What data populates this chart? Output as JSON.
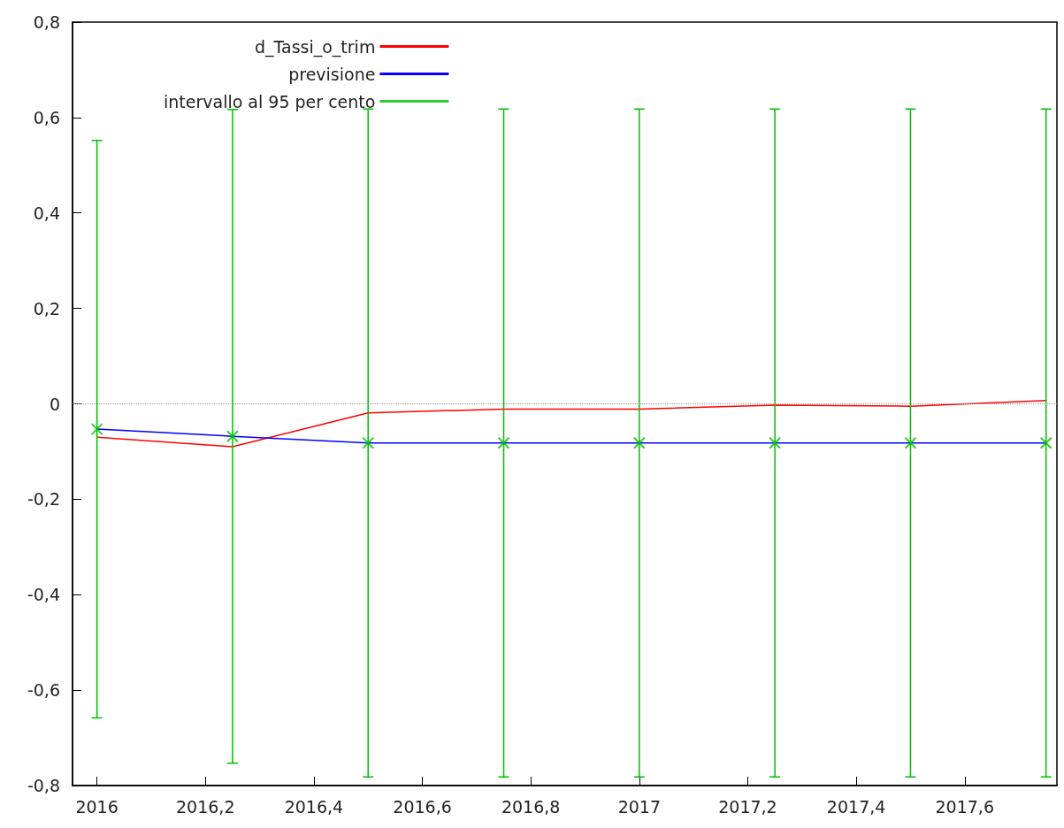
{
  "chart_data": {
    "type": "line",
    "x": [
      2016,
      2016.25,
      2016.5,
      2016.75,
      2017,
      2017.25,
      2017.5,
      2017.75
    ],
    "series": [
      {
        "name": "d_Tassi_o_trim",
        "color": "#ff0000",
        "values": [
          -0.07,
          -0.09,
          -0.019,
          -0.011,
          -0.011,
          -0.003,
          -0.005,
          0.007
        ]
      },
      {
        "name": "previsione",
        "color": "#0000ff",
        "values": [
          -0.053,
          -0.068,
          -0.082,
          -0.082,
          -0.082,
          -0.082,
          -0.082,
          -0.082
        ]
      },
      {
        "name": "intervallo al 95 per cento",
        "type": "scatter",
        "marker": "cross",
        "color": "#00c000",
        "values": [
          -0.053,
          -0.068,
          -0.082,
          -0.082,
          -0.082,
          -0.082,
          -0.082,
          -0.082
        ],
        "errors": [
          0.605,
          0.685,
          0.7,
          0.7,
          0.7,
          0.7,
          0.7,
          0.7
        ]
      }
    ],
    "xlim": [
      2015.955,
      2017.77
    ],
    "xticks": [
      2016,
      {
        "value": 2016.2,
        "label": "2016,2"
      },
      {
        "value": 2016.4,
        "label": "2016,4"
      },
      {
        "value": 2016.6,
        "label": "2016,6"
      },
      {
        "value": 2016.8,
        "label": "2016,8"
      },
      2017,
      {
        "value": 2017.2,
        "label": "2017,2"
      },
      {
        "value": 2017.4,
        "label": "2017,4"
      },
      {
        "value": 2017.6,
        "label": "2017,6"
      }
    ],
    "ylim": [
      -0.8,
      0.8
    ],
    "yticks": [
      {
        "value": -0.8,
        "label": "-0,8"
      },
      {
        "value": -0.6,
        "label": "-0,6"
      },
      {
        "value": -0.4,
        "label": "-0,4"
      },
      {
        "value": -0.2,
        "label": "-0,2"
      },
      0,
      {
        "value": 0.2,
        "label": "0,2"
      },
      {
        "value": 0.4,
        "label": "0,4"
      },
      {
        "value": 0.6,
        "label": "0,6"
      },
      {
        "value": 0.8,
        "label": "0,8"
      }
    ],
    "ref_lines": [
      {
        "axis": "y",
        "value": 0,
        "color": "#a0a0a0",
        "line_style": "dotted"
      }
    ],
    "legend": "top left",
    "grid": false,
    "marker": "none",
    "line_style": "solid"
  }
}
